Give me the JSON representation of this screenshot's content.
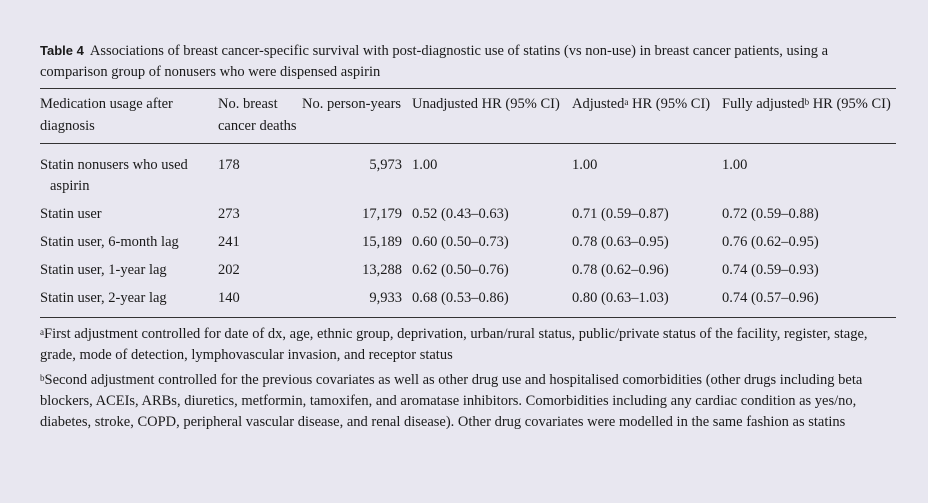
{
  "caption": {
    "label": "Table 4",
    "text": "Associations of breast cancer-specific survival with post-diagnostic use of statins (vs non-use) in breast cancer patients, using a comparison group of nonusers who were dispensed aspirin"
  },
  "headers": {
    "c1": "Medication usage after diagnosis",
    "c2": "No. breast cancer deaths",
    "c3": "No. person-years",
    "c4": "Unadjusted HR (95% CI)",
    "c5_pre": "Adjusted",
    "c5_sup": "a",
    "c5_post": " HR (95% CI)",
    "c6_pre": "Fully adjusted",
    "c6_sup": "b",
    "c6_post": " HR (95% CI)"
  },
  "rows": [
    {
      "usage_first": "Statin nonusers who used",
      "usage_cont": "aspirin",
      "deaths": "178",
      "person_years": "5,973",
      "unadjusted": "1.00",
      "adjusted": "1.00",
      "fully_adjusted": "1.00"
    },
    {
      "usage_first": "Statin user",
      "usage_cont": "",
      "deaths": "273",
      "person_years": "17,179",
      "unadjusted": "0.52 (0.43–0.63)",
      "adjusted": "0.71 (0.59–0.87)",
      "fully_adjusted": "0.72 (0.59–0.88)"
    },
    {
      "usage_first": "Statin user, 6-month lag",
      "usage_cont": "",
      "deaths": "241",
      "person_years": "15,189",
      "unadjusted": "0.60 (0.50–0.73)",
      "adjusted": "0.78 (0.63–0.95)",
      "fully_adjusted": "0.76 (0.62–0.95)"
    },
    {
      "usage_first": "Statin user, 1-year lag",
      "usage_cont": "",
      "deaths": "202",
      "person_years": "13,288",
      "unadjusted": "0.62 (0.50–0.76)",
      "adjusted": "0.78 (0.62–0.96)",
      "fully_adjusted": "0.74 (0.59–0.93)"
    },
    {
      "usage_first": "Statin user, 2-year lag",
      "usage_cont": "",
      "deaths": "140",
      "person_years": "9,933",
      "unadjusted": "0.68 (0.53–0.86)",
      "adjusted": "0.80 (0.63–1.03)",
      "fully_adjusted": "0.74 (0.57–0.96)"
    }
  ],
  "footnotes": [
    {
      "mark": "a",
      "text": "First adjustment controlled for date of dx, age, ethnic group, deprivation, urban/rural status, public/private status of the facility, register, stage, grade, mode of detection, lymphovascular invasion, and receptor status"
    },
    {
      "mark": "b",
      "text": "Second adjustment controlled for the previous covariates as well as other drug use and hospitalised comorbidities (other drugs including beta blockers, ACEIs, ARBs, diuretics, metformin, tamoxifen, and aromatase inhibitors. Comorbidities including any cardiac condition as yes/no, diabetes, stroke, COPD, peripheral vascular disease, and renal disease). Other drug covariates were modelled in the same fashion as statins"
    }
  ]
}
